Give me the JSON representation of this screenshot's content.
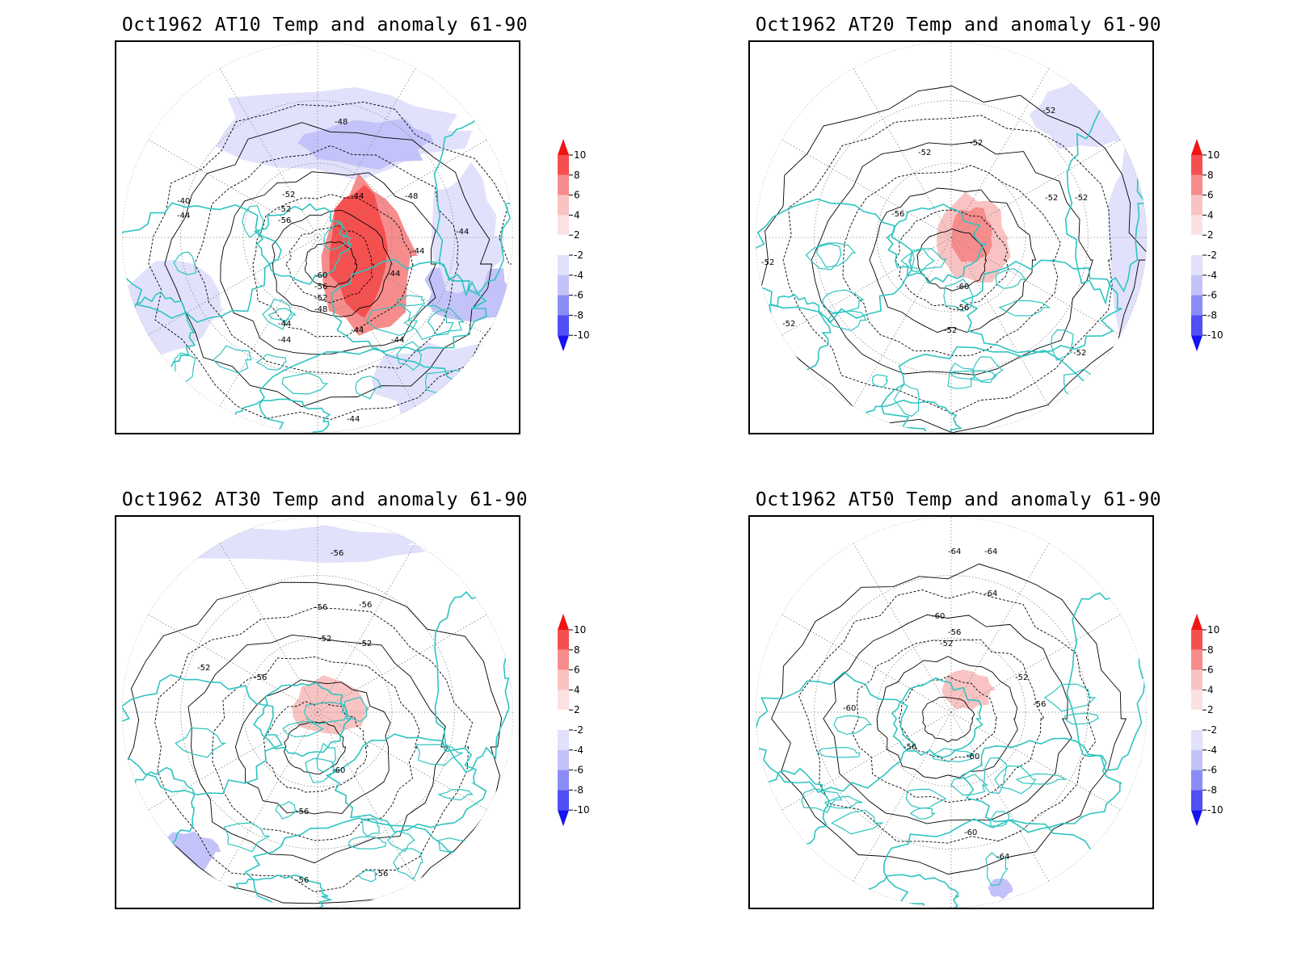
{
  "panels": [
    {
      "title": "Oct1962 AT10 Temp and anomaly 61-90",
      "contour_labels": [
        "-48",
        "-52",
        "-44",
        "-48",
        "-40",
        "-44",
        "-52",
        "-56",
        "-44",
        "-44",
        "-44",
        "-60",
        "-56",
        "-52",
        "-48",
        "-44",
        "-44",
        "-44",
        "-44",
        "-44"
      ]
    },
    {
      "title": "Oct1962 AT20 Temp and anomaly 61-90",
      "contour_labels": [
        "-52",
        "-52",
        "-52",
        "-52",
        "-56",
        "-52",
        "-60",
        "-56",
        "-52",
        "-52",
        "-52",
        "-52"
      ]
    },
    {
      "title": "Oct1962 AT30 Temp and anomaly 61-90",
      "contour_labels": [
        "-56",
        "-56",
        "-56",
        "-52",
        "-52",
        "-52",
        "-56",
        "-60",
        "-56",
        "-56",
        "-56"
      ]
    },
    {
      "title": "Oct1962 AT50 Temp and anomaly 61-90",
      "contour_labels": [
        "-64",
        "-64",
        "-64",
        "-60",
        "-56",
        "-52",
        "-52",
        "-56",
        "-60",
        "-56",
        "-60",
        "-60",
        "-64"
      ]
    }
  ],
  "colorbar": {
    "labels": [
      "10",
      "8",
      "6",
      "4",
      "2",
      "-2",
      "-4",
      "-6",
      "-8",
      "-10"
    ],
    "colors": [
      "#f01414",
      "#f55050",
      "#f78c8c",
      "#f9c3c3",
      "#fbe1e1",
      "#ffffff",
      "#e1e1fb",
      "#c3c3f9",
      "#8c8cf7",
      "#5050f5",
      "#1414f0"
    ]
  },
  "colors": {
    "coastline": "#2ec4c0",
    "grid": "#888888",
    "warm_anomaly": "#f55050",
    "cold_anomaly": "#5050f5"
  }
}
